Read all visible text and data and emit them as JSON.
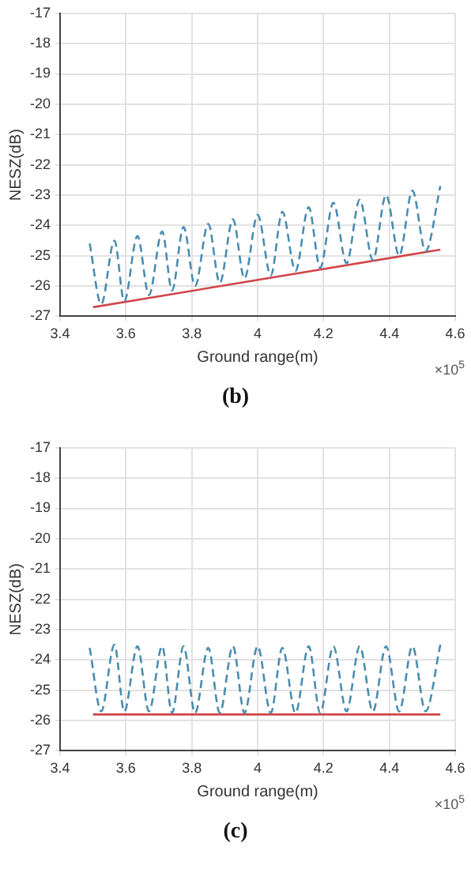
{
  "chart_data": [
    {
      "type": "line",
      "xlabel": "Ground range(m)",
      "ylabel": "NESZ(dB)",
      "annotations": [
        "×10$^{5}$",
        "(b)"
      ],
      "xlim": [
        3.4,
        4.6
      ],
      "xticks": [
        3.4,
        3.6,
        3.8,
        4,
        4.2,
        4.4,
        4.6
      ],
      "ylim": [
        -27,
        -17
      ],
      "yticks": [
        -27,
        -26,
        -25,
        -24,
        -23,
        -22,
        -21,
        -20,
        -19,
        -18,
        -17
      ],
      "grid": true,
      "legend": false,
      "marker": "none",
      "series": [
        {
          "color": "#4a8db0",
          "line_style": "dashed",
          "x": [
            3.49,
            3.525,
            3.565,
            3.595,
            3.635,
            3.67,
            3.71,
            3.74,
            3.775,
            3.81,
            3.85,
            3.885,
            3.925,
            3.96,
            4.0,
            4.04,
            4.075,
            4.115,
            4.155,
            4.19,
            4.23,
            4.27,
            4.31,
            4.35,
            4.39,
            4.43,
            4.47,
            4.51,
            4.555
          ],
          "values": [
            -24.6,
            -26.6,
            -24.5,
            -26.5,
            -24.35,
            -26.3,
            -24.2,
            -26.15,
            -24.05,
            -26.0,
            -23.95,
            -25.9,
            -23.8,
            -25.75,
            -23.65,
            -25.65,
            -23.55,
            -25.5,
            -23.4,
            -25.4,
            -23.25,
            -25.25,
            -23.15,
            -25.15,
            -23.0,
            -25.0,
            -22.85,
            -24.85,
            -22.7
          ]
        },
        {
          "color": "#d0454a",
          "line_style": "solid",
          "x": [
            3.5,
            4.555
          ],
          "values": [
            -26.7,
            -24.8
          ]
        }
      ]
    },
    {
      "type": "line",
      "xlabel": "Ground range(m)",
      "ylabel": "NESZ(dB)",
      "annotations": [
        "×10$^{5}$",
        "(c)"
      ],
      "xlim": [
        3.4,
        4.6
      ],
      "xticks": [
        3.4,
        3.6,
        3.8,
        4,
        4.2,
        4.4,
        4.6
      ],
      "ylim": [
        -27,
        -17
      ],
      "yticks": [
        -27,
        -26,
        -25,
        -24,
        -23,
        -22,
        -21,
        -20,
        -19,
        -18,
        -17
      ],
      "grid": true,
      "legend": false,
      "marker": "none",
      "series": [
        {
          "color": "#4a8db0",
          "line_style": "dashed",
          "x": [
            3.49,
            3.525,
            3.565,
            3.595,
            3.635,
            3.67,
            3.71,
            3.74,
            3.775,
            3.81,
            3.85,
            3.885,
            3.925,
            3.96,
            4.0,
            4.04,
            4.075,
            4.115,
            4.155,
            4.19,
            4.23,
            4.27,
            4.31,
            4.35,
            4.39,
            4.43,
            4.47,
            4.51,
            4.555
          ],
          "values": [
            -23.6,
            -25.7,
            -23.5,
            -25.7,
            -23.55,
            -25.7,
            -23.55,
            -25.75,
            -23.55,
            -25.75,
            -23.6,
            -25.75,
            -23.55,
            -25.75,
            -23.55,
            -25.75,
            -23.6,
            -25.75,
            -23.55,
            -25.75,
            -23.55,
            -25.7,
            -23.55,
            -25.7,
            -23.55,
            -25.7,
            -23.55,
            -25.7,
            -23.5
          ]
        },
        {
          "color": "#d0454a",
          "line_style": "solid",
          "x": [
            3.5,
            4.555
          ],
          "values": [
            -25.8,
            -25.8
          ]
        }
      ]
    }
  ]
}
